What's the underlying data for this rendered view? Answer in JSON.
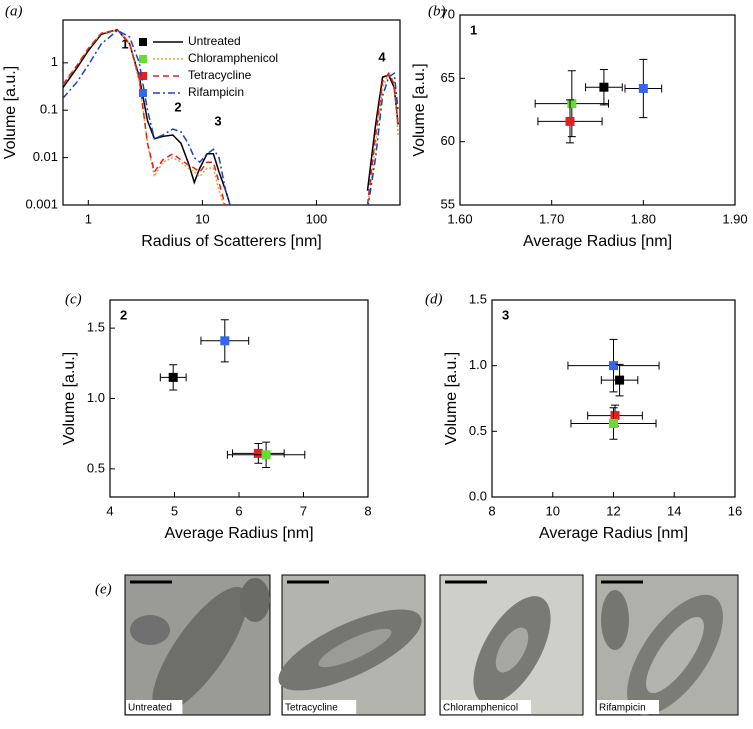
{
  "chart_data": [
    {
      "type": "line",
      "panel": "(a)",
      "x_label": "Radius of Scatterers [nm]",
      "y_label": "Volume [a.u.]",
      "xscale": "log",
      "yscale": "log",
      "xlim": [
        0.6,
        540
      ],
      "ylim": [
        0.001,
        8
      ],
      "xticks": [
        1,
        10,
        100
      ],
      "yticks": [
        0.001,
        0.01,
        0.1,
        1
      ],
      "legend": "upper center",
      "annotations": [
        "1",
        "2",
        "3",
        "4"
      ],
      "x": [
        0.6,
        0.8,
        1,
        1.3,
        1.8,
        2.3,
        2.8,
        3.3,
        3.8,
        4.5,
        5.5,
        6.5,
        7.5,
        8.5,
        9.5,
        11,
        12.5,
        14,
        16,
        18,
        100,
        280,
        330,
        380,
        430,
        480,
        520
      ],
      "series": [
        {
          "name": "Untreated",
          "color": "#000000",
          "style": "solid",
          "values": [
            0.3,
            0.8,
            1.8,
            4,
            5,
            2.5,
            0.5,
            0.06,
            0.025,
            0.028,
            0.03,
            0.02,
            0.008,
            0.003,
            0.006,
            0.012,
            0.012,
            0.005,
            0.002,
            0.0008,
            null,
            0.002,
            0.05,
            0.5,
            0.55,
            0.3,
            0.05
          ]
        },
        {
          "name": "Chloramphenicol",
          "color": "#f0a030",
          "style": "dotted",
          "values": [
            0.35,
            0.9,
            2,
            4.2,
            5,
            2.5,
            0.4,
            0.02,
            0.004,
            0.008,
            0.01,
            0.008,
            0.006,
            0.005,
            0.004,
            0.006,
            0.006,
            0.002,
            0.0008,
            null,
            null,
            0.0008,
            0.02,
            0.3,
            0.6,
            0.4,
            0.03
          ]
        },
        {
          "name": "Tetracycline",
          "color": "#e02020",
          "style": "dashed",
          "values": [
            0.35,
            0.9,
            2,
            4.2,
            5,
            2.6,
            0.45,
            0.02,
            0.005,
            0.009,
            0.012,
            0.009,
            0.007,
            0.006,
            0.005,
            0.008,
            0.008,
            0.003,
            0.0009,
            null,
            null,
            0.001,
            0.03,
            0.4,
            0.6,
            0.35,
            0.05
          ]
        },
        {
          "name": "Rifampicin",
          "color": "#2040c0",
          "style": "dashdot",
          "values": [
            0.18,
            0.4,
            0.9,
            2.5,
            4.8,
            3.5,
            1,
            0.1,
            0.025,
            0.03,
            0.04,
            0.035,
            0.02,
            0.01,
            0.008,
            0.012,
            0.015,
            0.01,
            0.002,
            0.0008,
            null,
            0.0008,
            0.01,
            0.2,
            0.5,
            0.6,
            0.1
          ]
        }
      ],
      "legend_markers": [
        "#000000",
        "#66dd33",
        "#e02020",
        "#3366ee"
      ]
    },
    {
      "type": "scatter",
      "panel": "(b)",
      "x_label": "Average Radius [nm]",
      "y_label": "Volume [a.u.]",
      "annotations": [
        "1"
      ],
      "xlim": [
        1.6,
        1.9
      ],
      "ylim": [
        55,
        70
      ],
      "xticks": [
        {
          "value": 1.6,
          "label": "1.60"
        },
        {
          "value": 1.7,
          "label": "1.70"
        },
        {
          "value": 1.8,
          "label": "1.80"
        },
        {
          "value": 1.9,
          "label": "1.90"
        }
      ],
      "yticks": [
        55,
        60,
        65,
        70
      ],
      "series": [
        {
          "color": "#000000",
          "x": [
            1.757
          ],
          "values": [
            64.3
          ],
          "xerr": [
            0.02
          ],
          "yerr": [
            1.4
          ]
        },
        {
          "color": "#66dd33",
          "x": [
            1.722
          ],
          "values": [
            63.0
          ],
          "xerr": [
            0.04
          ],
          "yerr": [
            2.6
          ]
        },
        {
          "color": "#e02020",
          "x": [
            1.72
          ],
          "values": [
            61.6
          ],
          "xerr": [
            0.035
          ],
          "yerr": [
            1.7
          ]
        },
        {
          "color": "#3366ee",
          "x": [
            1.8
          ],
          "values": [
            64.2
          ],
          "xerr": [
            0.02
          ],
          "yerr": [
            2.3
          ]
        }
      ]
    },
    {
      "type": "scatter",
      "panel": "(c)",
      "x_label": "Average Radius [nm]",
      "y_label": "Volume [a.u.]",
      "annotations": [
        "2"
      ],
      "xlim": [
        4,
        8
      ],
      "ylim": [
        0.3,
        1.7
      ],
      "xticks": [
        4,
        5,
        6,
        7,
        8
      ],
      "yticks": [
        0.5,
        {
          "value": 1,
          "label": "1.0"
        },
        1.5
      ],
      "series": [
        {
          "color": "#000000",
          "x": [
            4.98
          ],
          "values": [
            1.15
          ],
          "xerr": [
            0.2
          ],
          "yerr": [
            0.09
          ]
        },
        {
          "color": "#3366ee",
          "x": [
            5.78
          ],
          "values": [
            1.41
          ],
          "xerr": [
            0.37
          ],
          "yerr": [
            0.15
          ]
        },
        {
          "color": "#e02020",
          "x": [
            6.3
          ],
          "values": [
            0.61
          ],
          "xerr": [
            0.4
          ],
          "yerr": [
            0.07
          ]
        },
        {
          "color": "#66dd33",
          "x": [
            6.42
          ],
          "values": [
            0.6
          ],
          "xerr": [
            0.6
          ],
          "yerr": [
            0.09
          ]
        }
      ]
    },
    {
      "type": "scatter",
      "panel": "(d)",
      "x_label": "Average Radius [nm]",
      "y_label": "Volume [a.u.]",
      "annotations": [
        "3"
      ],
      "xlim": [
        8,
        16
      ],
      "ylim": [
        0,
        1.5
      ],
      "xticks": [
        8,
        10,
        12,
        14,
        16
      ],
      "yticks": [
        {
          "value": 0,
          "label": "0.0"
        },
        0.5,
        {
          "value": 1,
          "label": "1.0"
        },
        1.5
      ],
      "series": [
        {
          "color": "#3366ee",
          "x": [
            12.0
          ],
          "values": [
            1.0
          ],
          "xerr": [
            1.5
          ],
          "yerr": [
            0.2
          ]
        },
        {
          "color": "#000000",
          "x": [
            12.2
          ],
          "values": [
            0.89
          ],
          "xerr": [
            0.6
          ],
          "yerr": [
            0.12
          ]
        },
        {
          "color": "#e02020",
          "x": [
            12.05
          ],
          "values": [
            0.62
          ],
          "xerr": [
            0.9
          ],
          "yerr": [
            0.08
          ]
        },
        {
          "color": "#66dd33",
          "x": [
            12.0
          ],
          "values": [
            0.56
          ],
          "xerr": [
            1.4
          ],
          "yerr": [
            0.12
          ]
        }
      ]
    }
  ],
  "micrographs": {
    "panel": "(e)",
    "images": [
      {
        "label": "Untreated"
      },
      {
        "label": "Tetracycline"
      },
      {
        "label": "Chloramphenicol"
      },
      {
        "label": "Rifampicin"
      }
    ]
  }
}
